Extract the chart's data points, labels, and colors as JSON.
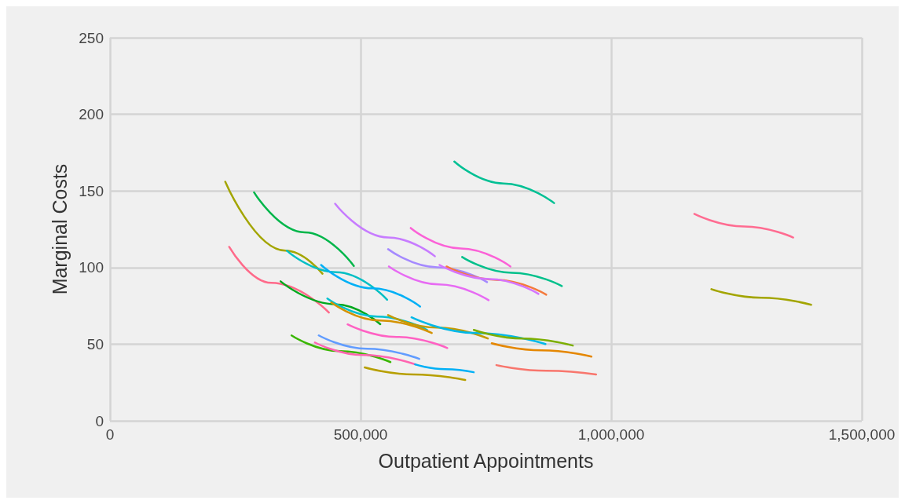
{
  "chart_data": {
    "type": "line",
    "xlabel": "Outpatient Appointments",
    "ylabel": "Marginal Costs",
    "xlim": [
      0,
      1500000
    ],
    "xticks": [
      0,
      {
        "value": 500000,
        "label": "500,000"
      },
      {
        "value": 1000000,
        "label": "1,000,000"
      },
      {
        "value": 1500000,
        "label": "1,500,000"
      }
    ],
    "ylim": [
      0,
      250
    ],
    "yticks": [
      0,
      50,
      100,
      150,
      200,
      250
    ],
    "grid": true,
    "marker": "none",
    "line_style": "solid",
    "series": [
      {
        "color": "#a3a500",
        "x": [
          230000,
          350000,
          424000
        ],
        "values": [
          156,
          111,
          96
        ]
      },
      {
        "color": "#00bfc4",
        "x": [
          353000,
          451000,
          553000
        ],
        "values": [
          111,
          97,
          79
        ]
      },
      {
        "color": "#00b64a",
        "x": [
          287500,
          388600,
          486500
        ],
        "values": [
          149,
          123,
          101
        ]
      },
      {
        "color": "#ff6a8a",
        "x": [
          237800,
          321800,
          436800
        ],
        "values": [
          113.5,
          90,
          70.6
        ]
      },
      {
        "color": "#00a81d",
        "x": [
          340400,
          450800,
          539400
        ],
        "values": [
          91,
          76,
          63
        ]
      },
      {
        "color": "#c77cff",
        "x": [
          449200,
          554900,
          648200
        ],
        "values": [
          141.6,
          119.6,
          107.4
        ]
      },
      {
        "color": "#00b0f6",
        "x": [
          421200,
          523800,
          618700
        ],
        "values": [
          101.7,
          86.4,
          74.6
        ]
      },
      {
        "color": "#00c0d0",
        "x": [
          433700,
          533100,
          632600
        ],
        "values": [
          79.8,
          68,
          59.3
        ]
      },
      {
        "color": "#d39200",
        "x": [
          441500,
          539400,
          642000
        ],
        "values": [
          77.2,
          65.4,
          57.3
        ]
      },
      {
        "color": "#c49a00",
        "x": [
          554900,
          652800,
          753900
        ],
        "values": [
          69,
          60.8,
          53.7
        ]
      },
      {
        "color": "#ff61c3",
        "x": [
          474100,
          572000,
          673000
        ],
        "values": [
          62.9,
          54.7,
          47.5
        ]
      },
      {
        "color": "#619cff",
        "x": [
          416600,
          513000,
          617100
        ],
        "values": [
          55.7,
          47,
          40.4
        ]
      },
      {
        "color": "#39b600",
        "x": [
          362200,
          458500,
          559600
        ],
        "values": [
          55.7,
          45.5,
          38.3
        ]
      },
      {
        "color": "#ff64b0",
        "x": [
          408800,
          505200,
          609300
        ],
        "values": [
          51.1,
          42.9,
          36.8
        ]
      },
      {
        "color": "#00b0f6",
        "x": [
          608700,
          668400,
          725700
        ],
        "values": [
          36.8,
          33.7,
          31.7
        ]
      },
      {
        "color": "#b79f00",
        "x": [
          508300,
          606200,
          708800
        ],
        "values": [
          34.8,
          30.2,
          26.6
        ]
      },
      {
        "color": "#fb61d7",
        "x": [
          600000,
          699500,
          799000
        ],
        "values": [
          125.8,
          112.5,
          100.7
        ]
      },
      {
        "color": "#a58aff",
        "x": [
          554900,
          652800,
          752300
        ],
        "values": [
          112,
          100.2,
          90.5
        ]
      },
      {
        "color": "#e76bf3",
        "x": [
          556500,
          656000,
          755400
        ],
        "values": [
          100.7,
          89,
          78.7
        ]
      },
      {
        "color": "#00c08b",
        "x": [
          702600,
          802100,
          901500
        ],
        "values": [
          106.9,
          96.6,
          87.9
        ]
      },
      {
        "color": "#f47a3c",
        "x": [
          671500,
          771000,
          870400
        ],
        "values": [
          100.7,
          92,
          82.3
        ]
      },
      {
        "color": "#d575fe",
        "x": [
          657500,
          757000,
          854900
        ],
        "values": [
          101.7,
          92.5,
          82.8
        ]
      },
      {
        "color": "#00c094",
        "x": [
          687000,
          785000,
          886000
        ],
        "values": [
          169.2,
          154.9,
          142.1
        ]
      },
      {
        "color": "#00b8e7",
        "x": [
          601600,
          730600,
          868900
        ],
        "values": [
          67.5,
          57.3,
          50.1
        ]
      },
      {
        "color": "#7cae00",
        "x": [
          725900,
          823800,
          923400
        ],
        "values": [
          59.3,
          53.7,
          49.1
        ]
      },
      {
        "color": "#e58700",
        "x": [
          761700,
          861100,
          960600
        ],
        "values": [
          50.6,
          46,
          41.9
        ]
      },
      {
        "color": "#f8766d",
        "x": [
          771000,
          870400,
          969900
        ],
        "values": [
          36.3,
          32.7,
          30.2
        ]
      },
      {
        "color": "#ff6c91",
        "x": [
          1165800,
          1265300,
          1363200
        ],
        "values": [
          135,
          126.8,
          119.6
        ]
      },
      {
        "color": "#a3a500",
        "x": [
          1200000,
          1299500,
          1399000
        ],
        "values": [
          85.9,
          80.3,
          75.7
        ]
      }
    ]
  }
}
